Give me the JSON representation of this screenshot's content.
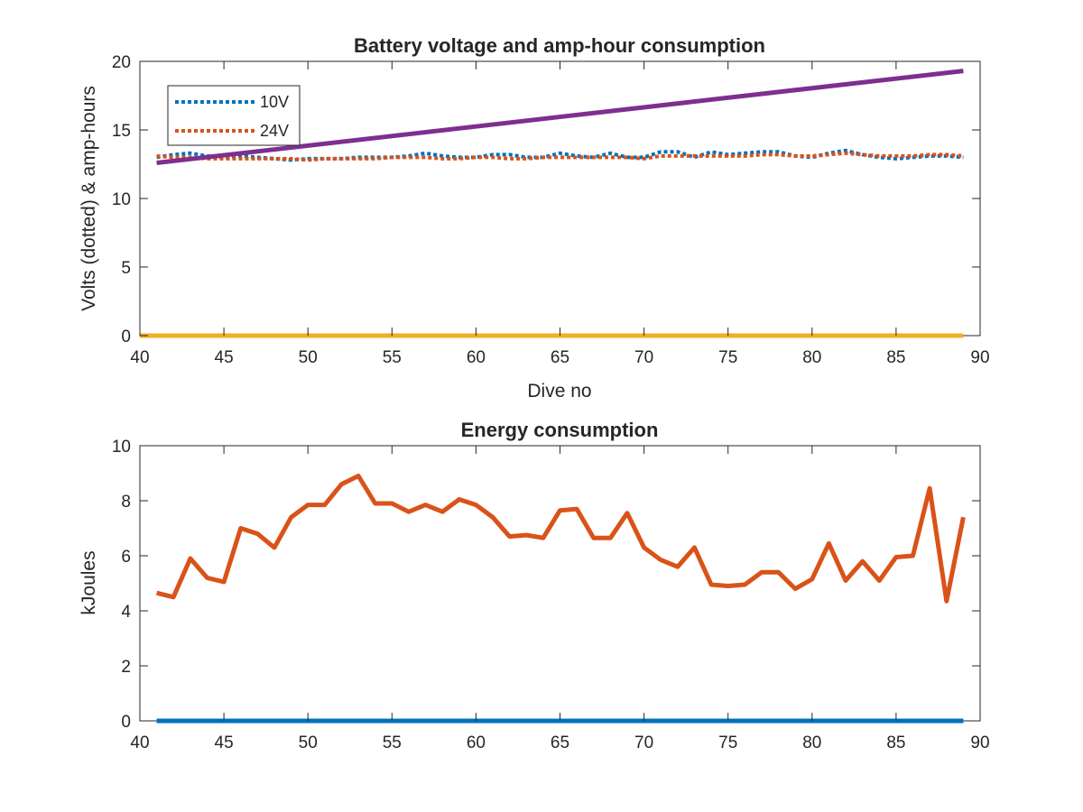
{
  "chart_data": [
    {
      "type": "line",
      "title": "Battery voltage and amp-hour consumption",
      "xlabel": "Dive no",
      "ylabel": "Volts (dotted) & amp-hours",
      "xlim": [
        40,
        90
      ],
      "ylim": [
        0,
        20
      ],
      "xticks": [
        "40",
        "45",
        "50",
        "55",
        "60",
        "65",
        "70",
        "75",
        "80",
        "85",
        "90"
      ],
      "yticks": [
        "0",
        "5",
        "10",
        "15",
        "20"
      ],
      "grid": false,
      "legend": "top-left",
      "series": [
        {
          "name": "10V",
          "style": "dotted",
          "color": "#0072BD",
          "x": [
            41,
            42,
            43,
            44,
            45,
            46,
            47,
            48,
            49,
            50,
            51,
            52,
            53,
            54,
            55,
            56,
            57,
            58,
            59,
            60,
            61,
            62,
            63,
            64,
            65,
            66,
            67,
            68,
            69,
            70,
            71,
            72,
            73,
            74,
            75,
            76,
            77,
            78,
            79,
            80,
            81,
            82,
            83,
            84,
            85,
            86,
            87,
            88,
            89
          ],
          "y": [
            13.0,
            13.2,
            13.3,
            13.1,
            13.0,
            13.1,
            13.0,
            12.9,
            12.8,
            12.9,
            12.9,
            12.9,
            13.0,
            13.0,
            13.0,
            13.1,
            13.3,
            13.1,
            13.0,
            13.0,
            13.2,
            13.2,
            13.0,
            13.0,
            13.3,
            13.1,
            13.0,
            13.3,
            13.0,
            13.0,
            13.4,
            13.4,
            13.0,
            13.4,
            13.2,
            13.3,
            13.4,
            13.4,
            13.1,
            13.0,
            13.3,
            13.5,
            13.2,
            13.0,
            12.9,
            13.0,
            13.1,
            13.1,
            13.0
          ]
        },
        {
          "name": "24V",
          "style": "dotted",
          "color": "#D95319",
          "x": [
            41,
            42,
            43,
            44,
            45,
            46,
            47,
            48,
            49,
            50,
            51,
            52,
            53,
            54,
            55,
            56,
            57,
            58,
            59,
            60,
            61,
            62,
            63,
            64,
            65,
            66,
            67,
            68,
            69,
            70,
            71,
            72,
            73,
            74,
            75,
            76,
            77,
            78,
            79,
            80,
            81,
            82,
            83,
            84,
            85,
            86,
            87,
            88,
            89
          ],
          "y": [
            13.1,
            13.0,
            13.0,
            12.9,
            12.9,
            12.9,
            12.9,
            12.9,
            12.9,
            12.8,
            12.9,
            12.9,
            12.9,
            12.9,
            13.0,
            13.0,
            13.0,
            12.9,
            12.9,
            13.0,
            13.0,
            12.9,
            12.9,
            13.0,
            13.0,
            13.0,
            13.0,
            13.0,
            13.0,
            12.9,
            13.1,
            13.1,
            13.1,
            13.1,
            13.1,
            13.1,
            13.2,
            13.2,
            13.1,
            13.1,
            13.2,
            13.3,
            13.2,
            13.1,
            13.1,
            13.1,
            13.2,
            13.2,
            13.1
          ]
        },
        {
          "name": "",
          "style": "solid",
          "color": "#7E2F8E",
          "x": [
            41,
            89
          ],
          "y": [
            12.6,
            19.3
          ]
        },
        {
          "name": "",
          "style": "solid",
          "color": "#EDB120",
          "x": [
            40,
            89
          ],
          "y": [
            0,
            0
          ]
        }
      ]
    },
    {
      "type": "line",
      "title": "Energy consumption",
      "xlabel": "",
      "ylabel": "kJoules",
      "xlim": [
        40,
        90
      ],
      "ylim": [
        0,
        10
      ],
      "xticks": [
        "40",
        "45",
        "50",
        "55",
        "60",
        "65",
        "70",
        "75",
        "80",
        "85",
        "90"
      ],
      "yticks": [
        "0",
        "2",
        "4",
        "6",
        "8",
        "10"
      ],
      "grid": false,
      "series": [
        {
          "name": "",
          "style": "solid",
          "color": "#D95319",
          "x": [
            41,
            42,
            43,
            44,
            45,
            46,
            47,
            48,
            49,
            50,
            51,
            52,
            53,
            54,
            55,
            56,
            57,
            58,
            59,
            60,
            61,
            62,
            63,
            64,
            65,
            66,
            67,
            68,
            69,
            70,
            71,
            72,
            73,
            74,
            75,
            76,
            77,
            78,
            79,
            80,
            81,
            82,
            83,
            84,
            85,
            86,
            87,
            88,
            89
          ],
          "y": [
            4.65,
            4.5,
            5.9,
            5.2,
            5.05,
            7.0,
            6.8,
            6.3,
            7.4,
            7.85,
            7.85,
            8.6,
            8.9,
            7.9,
            7.9,
            7.6,
            7.85,
            7.6,
            8.05,
            7.85,
            7.4,
            6.7,
            6.75,
            6.65,
            7.65,
            7.7,
            6.65,
            6.65,
            7.55,
            6.3,
            5.85,
            5.6,
            6.3,
            4.95,
            4.9,
            4.95,
            5.4,
            5.4,
            4.8,
            5.15,
            6.45,
            5.1,
            5.8,
            5.1,
            5.95,
            6.0,
            8.45,
            4.35,
            7.4
          ]
        },
        {
          "name": "",
          "style": "solid",
          "color": "#0072BD",
          "x": [
            41,
            89
          ],
          "y": [
            0,
            0
          ]
        }
      ]
    }
  ]
}
